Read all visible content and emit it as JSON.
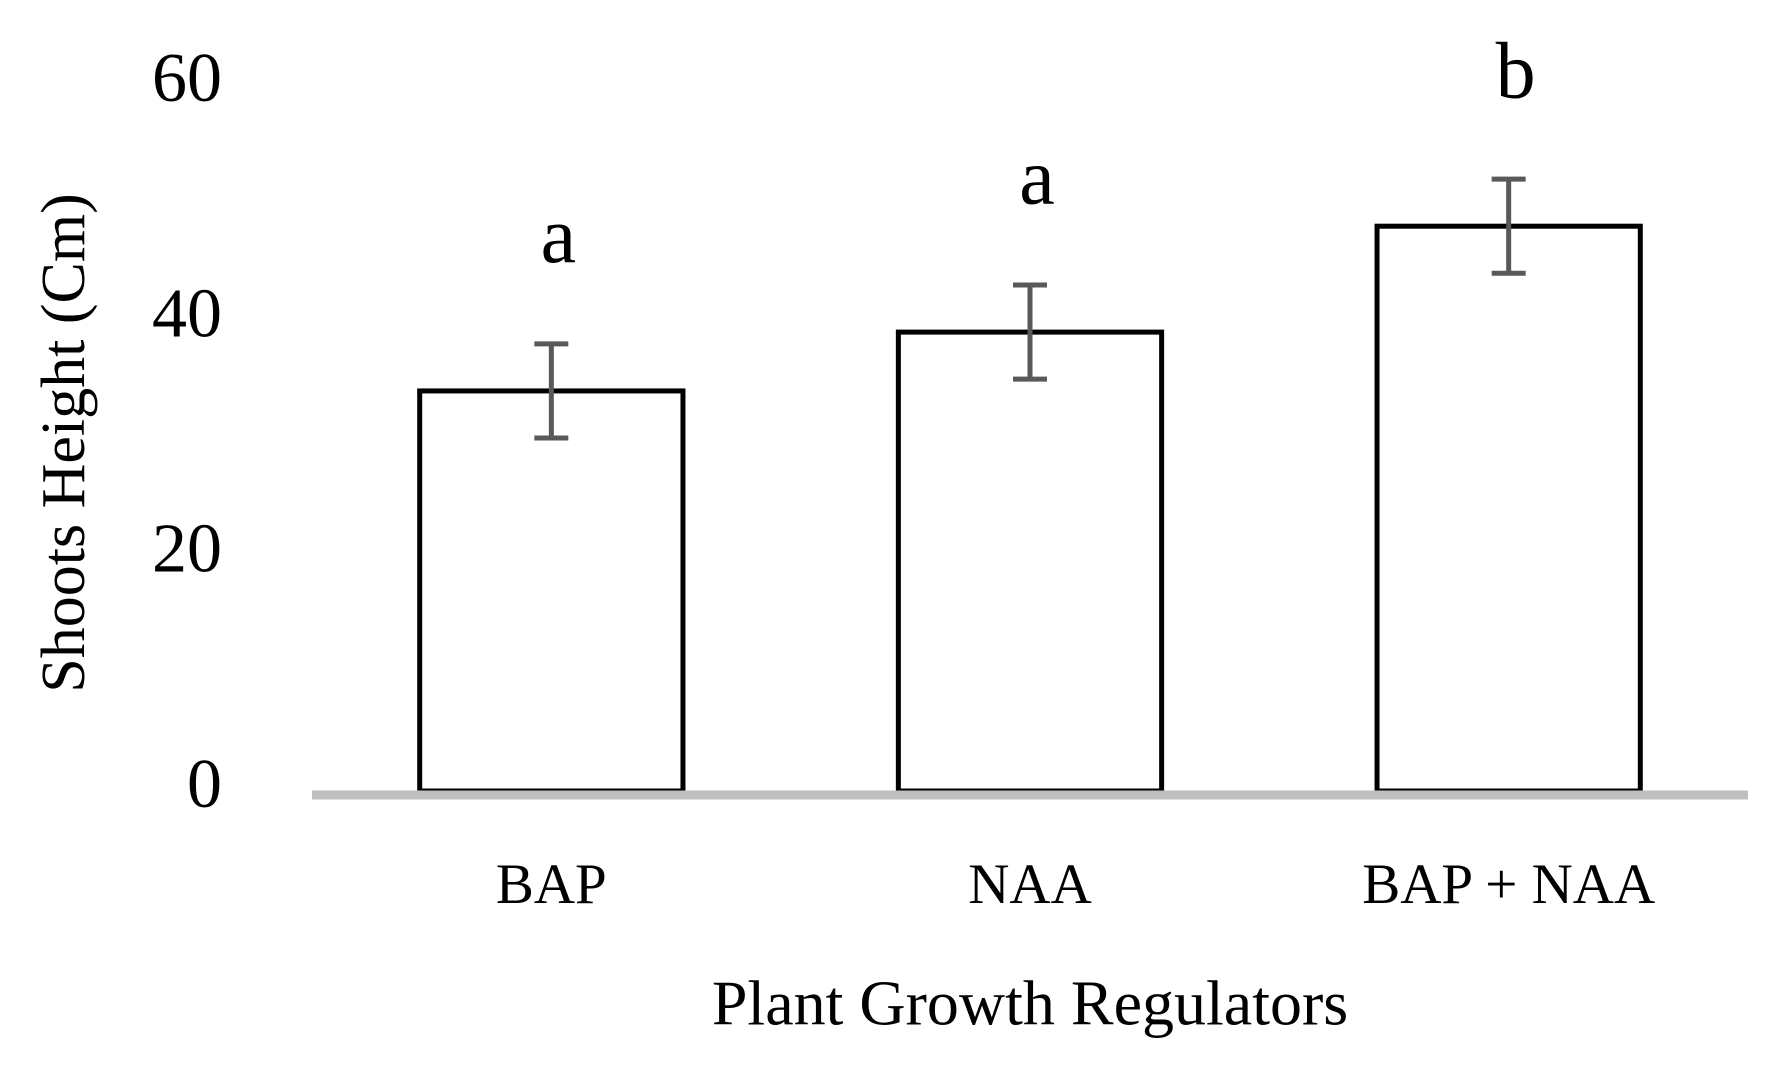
{
  "chart_data": {
    "type": "bar",
    "x_label": "Plant Growth Regulators",
    "y_label": "Shoots Height (Cm)",
    "categories": [
      "BAP",
      "NAA",
      "BAP + NAA"
    ],
    "values": [
      34,
      39,
      48
    ],
    "errors": [
      4,
      4,
      4
    ],
    "annotations": [
      "a",
      "a",
      "b"
    ],
    "color": "#ffffff",
    "edge_color": "#000000",
    "error_color": "#595959",
    "ylim": [
      0,
      60
    ],
    "yticks": [
      0,
      20,
      40,
      60
    ],
    "grid": false
  }
}
